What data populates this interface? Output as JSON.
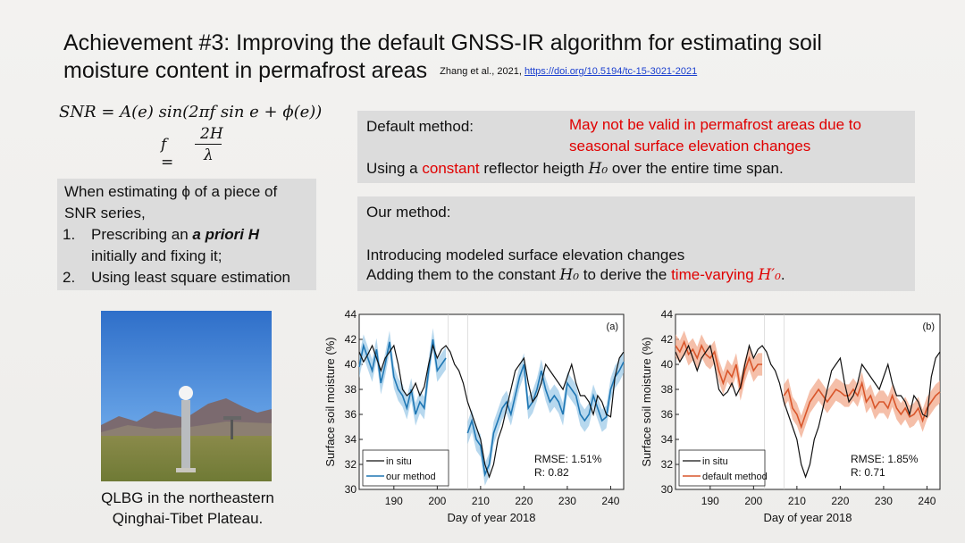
{
  "title": {
    "line1": "Achievement #3: Improving the default GNSS-IR algorithm for estimating soil",
    "line2": "moisture content in permafrost areas",
    "citation": "Zhang et al., 2021, ",
    "doi": "https://doi.org/10.5194/tc-15-3021-2021"
  },
  "equations": {
    "snr": "SNR = A(e) sin(2πf sin e + ϕ(e))",
    "f_lhs": "f =",
    "f_num": "2H",
    "f_den": "λ"
  },
  "estimation_box": {
    "line1": "When estimating ϕ of a piece of",
    "line2": "SNR series,",
    "item1_num": "1.",
    "item1_a": "Prescribing an ",
    "item1_b": "a priori H",
    "item1_c": "initially and fixing it;",
    "item2_num": "2.",
    "item2": "Using least square estimation"
  },
  "default_box": {
    "label": "Default method:",
    "warning1": "May not be valid in permafrost areas due to",
    "warning2": "seasonal surface elevation changes",
    "text_a": "Using a ",
    "text_b": "constant",
    "text_c": " reflector heigth ",
    "text_d": "H₀",
    "text_e": " over the entire time span."
  },
  "our_box": {
    "label": "Our method:",
    "line1": "Introducing modeled surface elevation changes",
    "line2_a": "Adding them to the constant ",
    "line2_b": "H₀",
    "line2_c": " to derive the ",
    "line2_d": "time-varying ",
    "line2_e": "H′₀",
    "line2_f": "."
  },
  "photo_caption": {
    "line1": "QLBG in the northeastern",
    "line2": "Qinghai-Tibet Plateau."
  },
  "colors": {
    "blue": "#1f77b4",
    "blue_band": "#9fcbe8",
    "orange": "#d9562b",
    "orange_band": "#f1a98c",
    "red_text": "#e00000"
  },
  "chart_data": [
    {
      "type": "line",
      "panel": "(a)",
      "xlabel": "Day of year 2018",
      "ylabel": "Surface soil moisture (%)",
      "xlim": [
        182,
        243
      ],
      "ylim": [
        30,
        44
      ],
      "xticks": [
        190,
        200,
        210,
        220,
        230,
        240
      ],
      "yticks": [
        30,
        32,
        34,
        36,
        38,
        40,
        42,
        44
      ],
      "legend_position": "bottom-left",
      "stats": [
        "RMSE: 1.51%",
        "R: 0.82"
      ],
      "series": [
        {
          "name": "in situ",
          "color": "#111111",
          "x": [
            182,
            183,
            184,
            185,
            186,
            187,
            188,
            189,
            190,
            191,
            192,
            193,
            194,
            195,
            196,
            197,
            198,
            199,
            200,
            201,
            202,
            203,
            204,
            205,
            206,
            207,
            208,
            209,
            210,
            211,
            212,
            213,
            214,
            215,
            216,
            217,
            218,
            219,
            220,
            221,
            222,
            223,
            224,
            225,
            226,
            227,
            228,
            229,
            230,
            231,
            232,
            233,
            234,
            235,
            236,
            237,
            238,
            239,
            240,
            241,
            242,
            243
          ],
          "y": [
            41,
            40.2,
            40.8,
            41.5,
            40.5,
            39.5,
            40.5,
            41,
            41.5,
            40,
            38,
            37.5,
            37.8,
            38.5,
            37.5,
            38.2,
            40,
            41.5,
            40.5,
            41.2,
            41.5,
            41,
            40,
            39.5,
            38.5,
            37,
            36,
            35,
            34,
            32,
            31,
            32,
            34,
            35,
            36.5,
            38,
            39.5,
            40,
            40.5,
            38.5,
            37,
            37.5,
            38.5,
            40,
            39.5,
            39,
            38.5,
            38,
            39,
            40,
            38.5,
            37.5,
            37.5,
            37,
            36,
            37.5,
            37,
            36,
            35.8,
            39,
            40.5,
            41
          ]
        },
        {
          "name": "our method",
          "color": "#1f77b4",
          "segments": [
            {
              "x": [
                182,
                183,
                184,
                185,
                186,
                187,
                188,
                189,
                190,
                191,
                192,
                193,
                194,
                195,
                196,
                197,
                198,
                199,
                200,
                201,
                202
              ],
              "y": [
                39.8,
                41.5,
                40.5,
                39.5,
                41.2,
                38.5,
                40,
                41.8,
                39,
                38,
                37.5,
                36.5,
                38,
                36,
                37,
                36.5,
                39.5,
                42,
                39.5,
                40,
                40.5
              ]
            },
            {
              "x": [
                207,
                208,
                209,
                210,
                211,
                212,
                213,
                214,
                215,
                216,
                217,
                218,
                219,
                220,
                221,
                222,
                223,
                224,
                225,
                226,
                227,
                228,
                229,
                230,
                231,
                232,
                233,
                234,
                235,
                236,
                237,
                238,
                239,
                240,
                241,
                242,
                243
              ],
              "y": [
                34.5,
                35.5,
                34,
                33.5,
                31.2,
                32,
                34.5,
                35.5,
                36.5,
                37,
                36,
                37.5,
                39,
                40,
                36.5,
                37,
                38,
                39.5,
                38,
                37,
                37.5,
                37,
                36,
                38.5,
                38,
                37.5,
                36,
                35.5,
                36,
                37.5,
                36.5,
                35.5,
                35.8,
                38,
                39,
                39.5,
                40.2
              ]
            }
          ]
        }
      ]
    },
    {
      "type": "line",
      "panel": "(b)",
      "xlabel": "Day of year 2018",
      "ylabel": "Surface soil moisture (%)",
      "xlim": [
        182,
        243
      ],
      "ylim": [
        30,
        44
      ],
      "xticks": [
        190,
        200,
        210,
        220,
        230,
        240
      ],
      "yticks": [
        30,
        32,
        34,
        36,
        38,
        40,
        42,
        44
      ],
      "legend_position": "bottom-left",
      "stats": [
        "RMSE: 1.85%",
        "R: 0.71"
      ],
      "series": [
        {
          "name": "in situ",
          "color": "#111111",
          "x": [
            182,
            183,
            184,
            185,
            186,
            187,
            188,
            189,
            190,
            191,
            192,
            193,
            194,
            195,
            196,
            197,
            198,
            199,
            200,
            201,
            202,
            203,
            204,
            205,
            206,
            207,
            208,
            209,
            210,
            211,
            212,
            213,
            214,
            215,
            216,
            217,
            218,
            219,
            220,
            221,
            222,
            223,
            224,
            225,
            226,
            227,
            228,
            229,
            230,
            231,
            232,
            233,
            234,
            235,
            236,
            237,
            238,
            239,
            240,
            241,
            242,
            243
          ],
          "y": [
            41,
            40.2,
            40.8,
            41.5,
            40.5,
            39.5,
            40.5,
            41,
            41.5,
            40,
            38,
            37.5,
            37.8,
            38.5,
            37.5,
            38.2,
            40,
            41.5,
            40.5,
            41.2,
            41.5,
            41,
            40,
            39.5,
            38.5,
            37,
            36,
            35,
            34,
            32,
            31,
            32,
            34,
            35,
            36.5,
            38,
            39.5,
            40,
            40.5,
            38.5,
            37,
            37.5,
            38.5,
            40,
            39.5,
            39,
            38.5,
            38,
            39,
            40,
            38.5,
            37.5,
            37.5,
            37,
            36,
            37.5,
            37,
            36,
            35.8,
            39,
            40.5,
            41
          ]
        },
        {
          "name": "default method",
          "color": "#d9562b",
          "segments": [
            {
              "x": [
                182,
                183,
                184,
                185,
                186,
                187,
                188,
                189,
                190,
                191,
                192,
                193,
                194,
                195,
                196,
                197,
                198,
                199,
                200,
                201,
                202
              ],
              "y": [
                41.5,
                41,
                41.8,
                40.8,
                41.2,
                40.5,
                41.5,
                40.8,
                40.5,
                41,
                39.5,
                38.5,
                39.5,
                39,
                40,
                38,
                39.5,
                40.5,
                39.5,
                40,
                40
              ]
            },
            {
              "x": [
                207,
                208,
                209,
                210,
                211,
                212,
                213,
                214,
                215,
                216,
                217,
                218,
                219,
                220,
                221,
                222,
                223,
                224,
                225,
                226,
                227,
                228,
                229,
                230,
                231,
                232,
                233,
                234,
                235,
                236,
                237,
                238,
                239,
                240,
                241,
                242,
                243
              ],
              "y": [
                37.5,
                38,
                36.5,
                36,
                35,
                36,
                37,
                37.5,
                38,
                37.5,
                37,
                37.5,
                38,
                37.8,
                37.5,
                37.5,
                38,
                37.5,
                38.5,
                37,
                37.5,
                36.5,
                37,
                37,
                36.5,
                37.5,
                36.5,
                36,
                36.5,
                35.8,
                36,
                36.5,
                35.5,
                36.5,
                37,
                37.5,
                37.8
              ]
            }
          ]
        }
      ]
    }
  ]
}
